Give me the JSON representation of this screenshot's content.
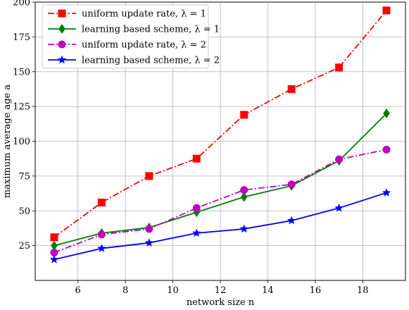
{
  "chart_data": {
    "type": "line",
    "xlabel": "network size n",
    "ylabel": "maximum average age a",
    "x_ticks": [
      6,
      8,
      10,
      12,
      14,
      16,
      18
    ],
    "y_ticks": [
      25,
      50,
      75,
      100,
      125,
      150,
      175,
      200
    ],
    "xlim": [
      4.2,
      19.8
    ],
    "ylim": [
      0,
      200
    ],
    "grid": true,
    "legend_position": "top-left",
    "x": [
      5,
      7,
      9,
      11,
      13,
      15,
      17,
      19
    ],
    "series": [
      {
        "name": "uniform update rate, λ = 1",
        "values": [
          31,
          56,
          75,
          87.5,
          119,
          137.5,
          153,
          194
        ],
        "color": "#ff0000",
        "line_style": "dash-dot",
        "marker": "square"
      },
      {
        "name": "learning based scheme, λ = 1",
        "values": [
          25,
          34,
          38,
          49,
          60,
          68,
          86,
          120
        ],
        "color": "#008000",
        "line_style": "solid",
        "marker": "diamond"
      },
      {
        "name": "uniform update rate, λ = 2",
        "values": [
          20,
          33,
          37,
          52,
          65,
          69,
          87,
          94
        ],
        "color": "#bf00bf",
        "line_style": "dash-dot",
        "marker": "circle"
      },
      {
        "name": "learning based scheme, λ = 2",
        "values": [
          15,
          23,
          27,
          34,
          37,
          43,
          52,
          63
        ],
        "color": "#0000ff",
        "line_style": "solid",
        "marker": "star"
      }
    ]
  }
}
